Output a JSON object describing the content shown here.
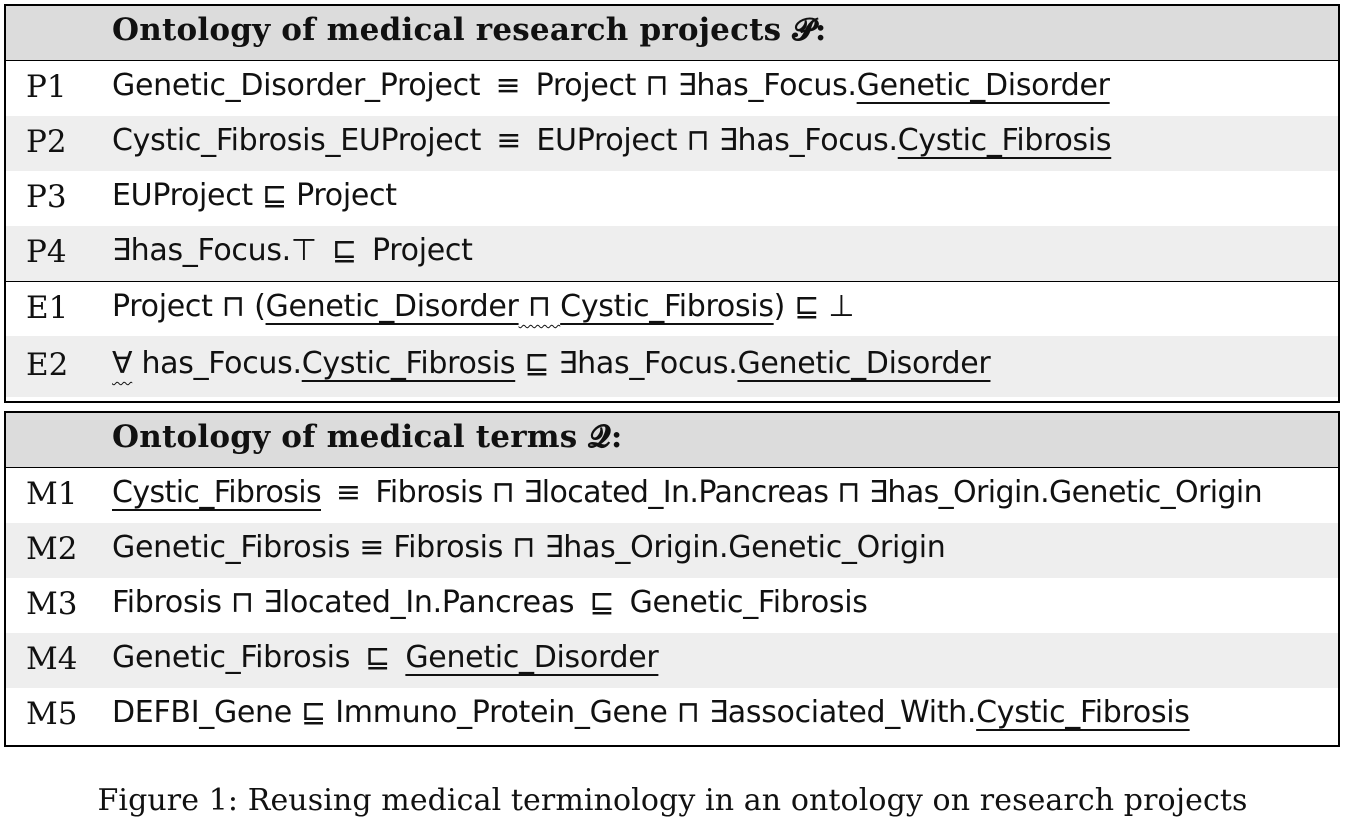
{
  "ontology_p": {
    "title": "Ontology of medical research projects 𝓟:",
    "rows": [
      {
        "id": "P1",
        "parts": [
          "Genetic_Disorder_Project",
          " ≡ ",
          "Project",
          " ⊓ ",
          "∃has_Focus.",
          "Genetic_Disorder"
        ]
      },
      {
        "id": "P2",
        "parts": [
          "Cystic_Fibrosis_EUProject",
          " ≡ ",
          "EUProject",
          " ⊓ ",
          "∃has_Focus.",
          "Cystic_Fibrosis"
        ]
      },
      {
        "id": "P3",
        "parts": [
          "EUProject",
          " ⊑ ",
          "Project"
        ]
      },
      {
        "id": "P4",
        "parts": [
          "∃has_Focus.⊤",
          " ⊑ ",
          "Project"
        ]
      },
      {
        "id": "E1",
        "parts": [
          "Project",
          " ⊓ ",
          "(",
          "Genetic_Disorder",
          " ⊓ ",
          "Cystic_Fibrosis",
          ")",
          " ⊑ ",
          "⊥"
        ]
      },
      {
        "id": "E2",
        "parts": [
          "∀",
          " has_Focus.",
          "Cystic_Fibrosis",
          " ⊑ ",
          "∃has_Focus.",
          "Genetic_Disorder"
        ]
      }
    ]
  },
  "ontology_q": {
    "title": "Ontology of medical terms 𝓠:",
    "rows": [
      {
        "id": "M1",
        "parts": [
          "Cystic_Fibrosis",
          " ≡ ",
          "Fibrosis",
          " ⊓ ",
          "∃located_In.Pancreas",
          " ⊓ ",
          "∃has_Origin.Genetic_Origin"
        ]
      },
      {
        "id": "M2",
        "parts": [
          "Genetic_Fibrosis",
          " ≡ ",
          "Fibrosis",
          " ⊓ ",
          "∃has_Origin.Genetic_Origin"
        ]
      },
      {
        "id": "M3",
        "parts": [
          "Fibrosis",
          " ⊓ ",
          "∃located_In.Pancreas",
          " ⊑ ",
          "Genetic_Fibrosis"
        ]
      },
      {
        "id": "M4",
        "parts": [
          "Genetic_Fibrosis",
          " ⊑ ",
          "Genetic_Disorder"
        ]
      },
      {
        "id": "M5",
        "parts": [
          "DEFBI_Gene",
          " ⊑ ",
          "Immuno_Protein_Gene",
          " ⊓ ",
          "∃associated_With.",
          "Cystic_Fibrosis"
        ]
      }
    ]
  },
  "caption": "Figure 1: Reusing medical terminology in an ontology on research projects"
}
